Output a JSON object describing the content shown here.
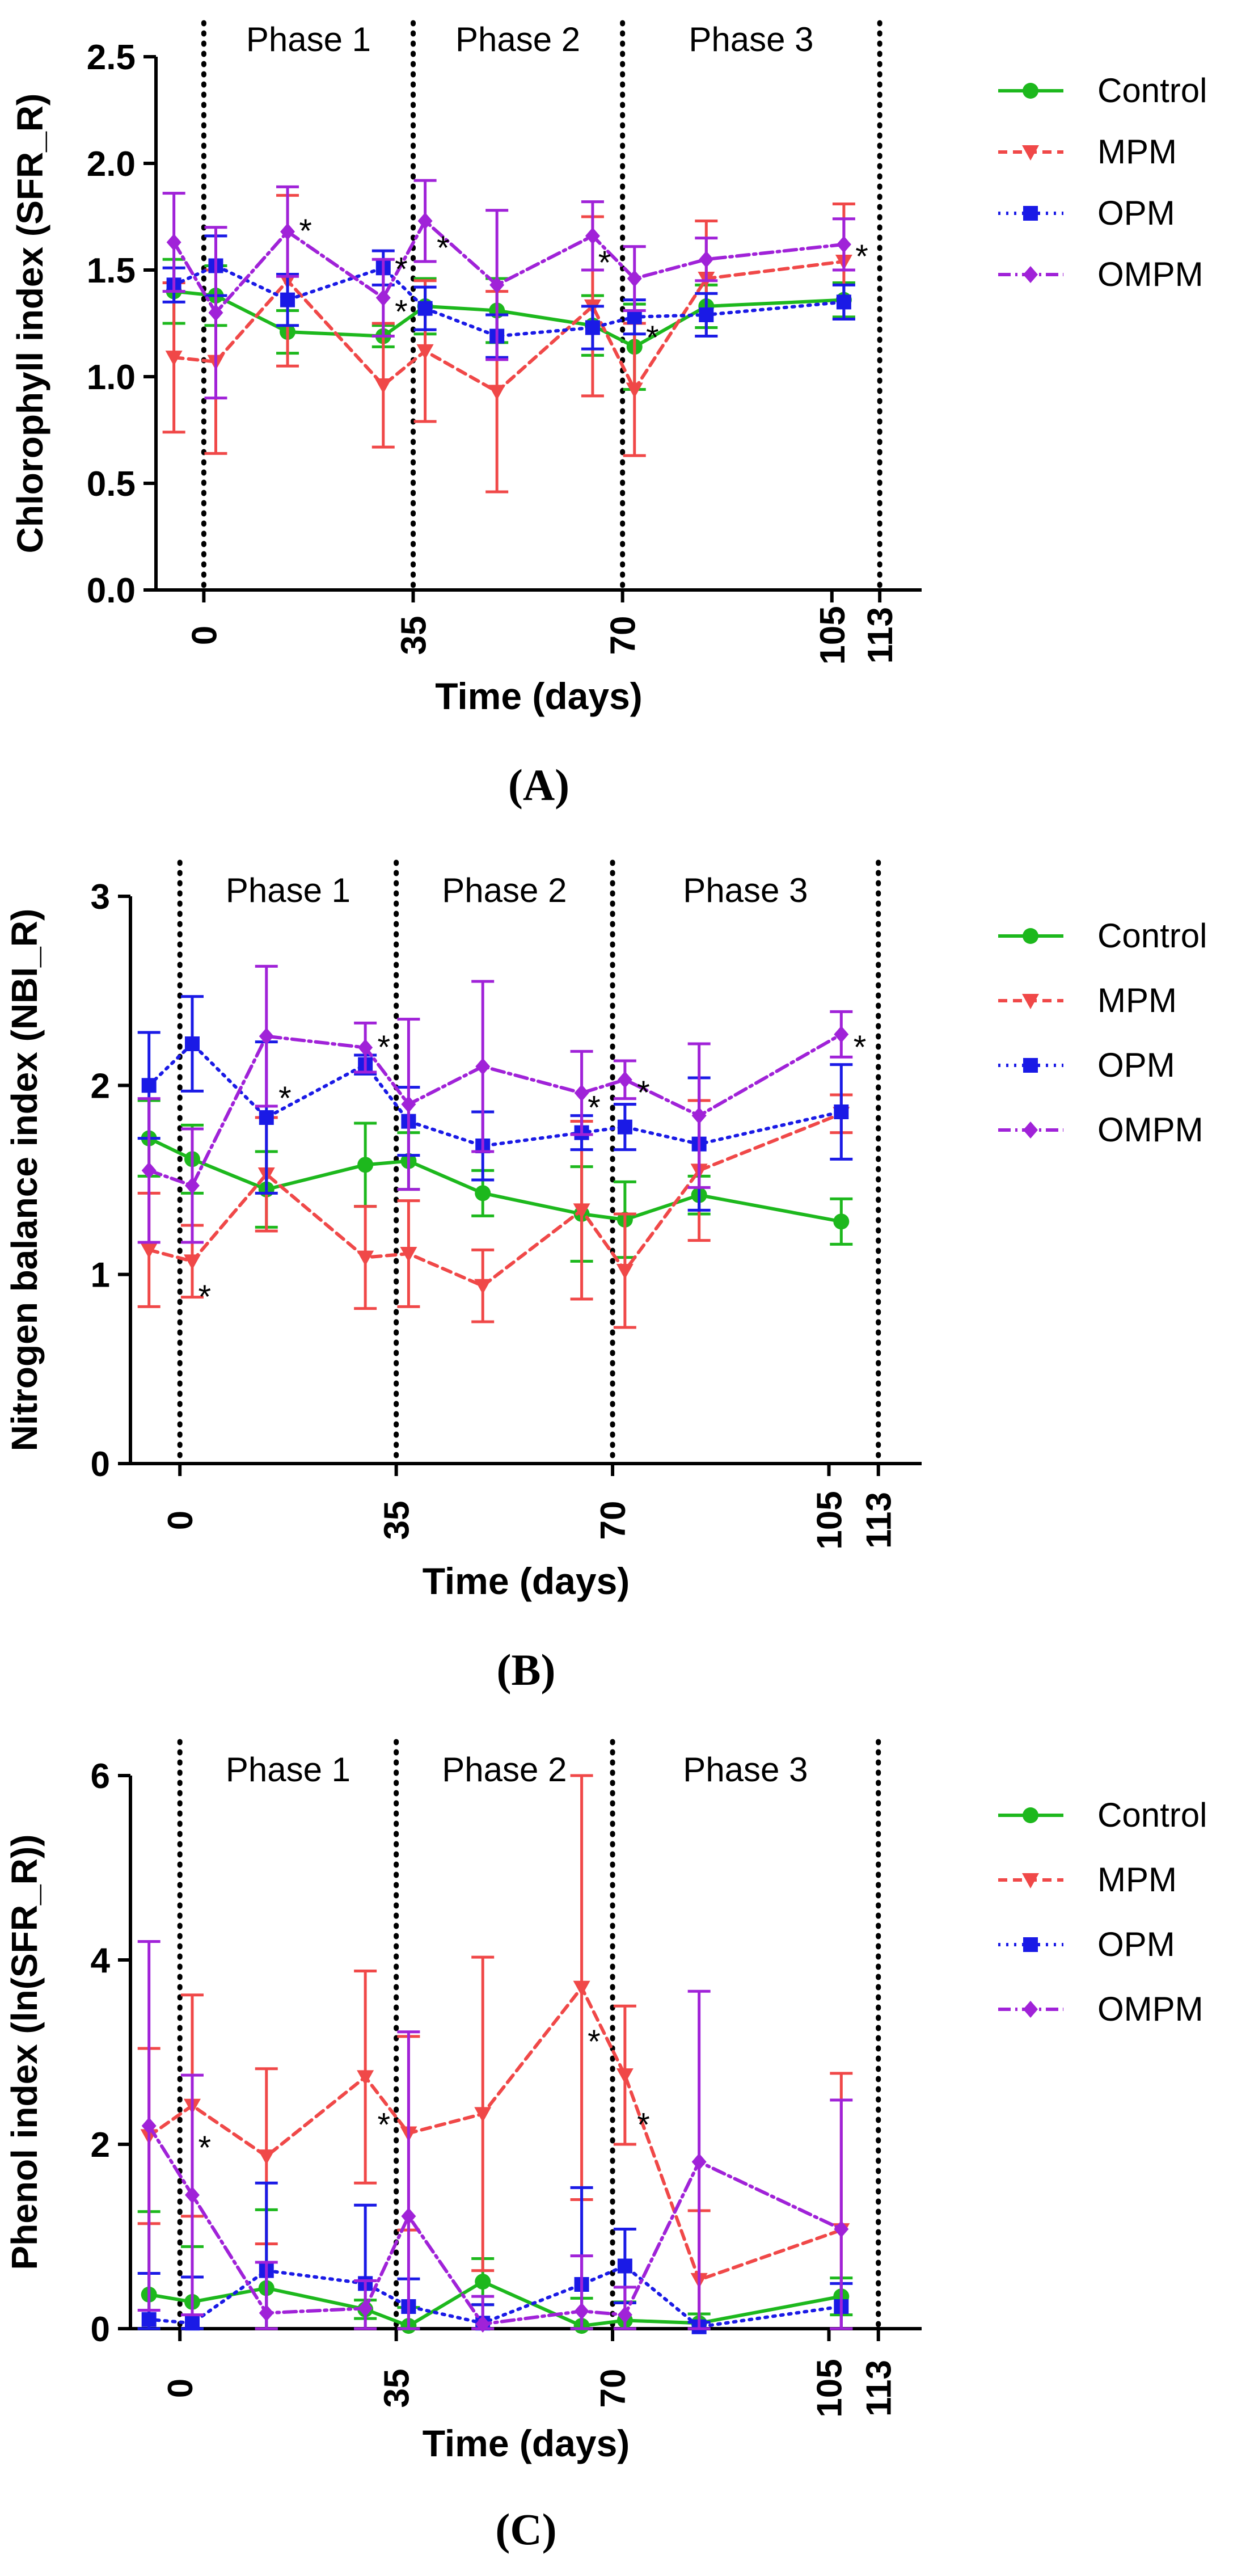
{
  "colors": {
    "Control": "#1db81d",
    "MPM": "#f04848",
    "OPM": "#1a1ae6",
    "OMPM": "#a022d8"
  },
  "chart_data": [
    {
      "type": "line",
      "caption": "(A)",
      "ylabel": "Chlorophyll index (SFR_R)",
      "xlabel": "Time (days)",
      "ylim": [
        0,
        2.5
      ],
      "yticks": [
        "0.0",
        "0.5",
        "1.0",
        "1.5",
        "2.0",
        "2.5"
      ],
      "xlim": [
        -8,
        120
      ],
      "xticks": [
        "0",
        "35",
        "70",
        "105",
        "113"
      ],
      "phase_lines": [
        0,
        35,
        70,
        113
      ],
      "phases": [
        "Phase 1",
        "Phase 2",
        "Phase 3"
      ],
      "legend": [
        "Control",
        "MPM",
        "OPM",
        "OMPM"
      ],
      "x": [
        -5,
        2,
        14,
        30,
        37,
        49,
        65,
        72,
        84,
        107
      ],
      "series": [
        {
          "name": "Control",
          "values": [
            1.4,
            1.38,
            1.21,
            1.19,
            1.33,
            1.31,
            1.24,
            1.14,
            1.33,
            1.36
          ],
          "errors": [
            0.15,
            0.14,
            0.1,
            0.05,
            0.13,
            0.15,
            0.14,
            0.2,
            0.1,
            0.08
          ]
        },
        {
          "name": "MPM",
          "values": [
            1.09,
            1.07,
            1.45,
            0.96,
            1.12,
            0.93,
            1.33,
            0.94,
            1.46,
            1.54
          ],
          "errors": [
            0.35,
            0.43,
            0.4,
            0.29,
            0.33,
            0.47,
            0.42,
            0.31,
            0.27,
            0.27
          ]
        },
        {
          "name": "OPM",
          "values": [
            1.43,
            1.52,
            1.36,
            1.51,
            1.32,
            1.19,
            1.23,
            1.28,
            1.29,
            1.35
          ],
          "errors": [
            0.08,
            0.14,
            0.12,
            0.08,
            0.1,
            0.1,
            0.1,
            0.08,
            0.1,
            0.08
          ]
        },
        {
          "name": "OMPM",
          "values": [
            1.63,
            1.3,
            1.68,
            1.37,
            1.73,
            1.43,
            1.66,
            1.46,
            1.55,
            1.62
          ],
          "errors": [
            0.23,
            0.4,
            0.21,
            0.18,
            0.19,
            0.35,
            0.16,
            0.15,
            0.1,
            0.12
          ]
        }
      ],
      "annotations": [
        {
          "text": "*",
          "x": 17,
          "y": 1.7
        },
        {
          "text": "*",
          "x": 33,
          "y": 1.52
        },
        {
          "text": "*",
          "x": 33,
          "y": 1.32
        },
        {
          "text": "*",
          "x": 40,
          "y": 1.62
        },
        {
          "text": "*",
          "x": 67,
          "y": 1.55
        },
        {
          "text": "*",
          "x": 75,
          "y": 1.2
        },
        {
          "text": "*",
          "x": 110,
          "y": 1.58
        }
      ]
    },
    {
      "type": "line",
      "caption": "(B)",
      "ylabel": "Nitrogen balance index (NBI_R)",
      "xlabel": "Time (days)",
      "ylim": [
        0,
        3
      ],
      "yticks": [
        "0",
        "1",
        "2",
        "3"
      ],
      "xlim": [
        -8,
        120
      ],
      "xticks": [
        "0",
        "35",
        "70",
        "105",
        "113"
      ],
      "phase_lines": [
        0,
        35,
        70,
        113
      ],
      "phases": [
        "Phase 1",
        "Phase 2",
        "Phase 3"
      ],
      "legend": [
        "Control",
        "MPM",
        "OPM",
        "OMPM"
      ],
      "x": [
        -5,
        2,
        14,
        30,
        37,
        49,
        65,
        72,
        84,
        107
      ],
      "series": [
        {
          "name": "Control",
          "values": [
            1.72,
            1.61,
            1.45,
            1.58,
            1.6,
            1.43,
            1.32,
            1.29,
            1.42,
            1.28
          ],
          "errors": [
            0.2,
            0.18,
            0.2,
            0.22,
            0.15,
            0.12,
            0.25,
            0.2,
            0.1,
            0.12
          ]
        },
        {
          "name": "MPM",
          "values": [
            1.13,
            1.07,
            1.53,
            1.09,
            1.11,
            0.94,
            1.34,
            1.02,
            1.55,
            1.85
          ],
          "errors": [
            0.3,
            0.19,
            0.3,
            0.27,
            0.28,
            0.19,
            0.47,
            0.3,
            0.37,
            0.1
          ]
        },
        {
          "name": "OPM",
          "values": [
            2.0,
            2.22,
            1.83,
            2.11,
            1.81,
            1.68,
            1.75,
            1.78,
            1.69,
            1.86
          ],
          "errors": [
            0.28,
            0.25,
            0.4,
            0.05,
            0.18,
            0.18,
            0.09,
            0.12,
            0.35,
            0.25
          ]
        },
        {
          "name": "OMPM",
          "values": [
            1.55,
            1.47,
            2.26,
            2.2,
            1.9,
            2.1,
            1.96,
            2.03,
            1.84,
            2.27
          ],
          "errors": [
            0.38,
            0.3,
            0.37,
            0.13,
            0.45,
            0.45,
            0.22,
            0.1,
            0.38,
            0.12
          ]
        }
      ],
      "annotations": [
        {
          "text": "*",
          "x": 4,
          "y": 0.9
        },
        {
          "text": "*",
          "x": 17,
          "y": 1.95
        },
        {
          "text": "*",
          "x": 33,
          "y": 2.22
        },
        {
          "text": "*",
          "x": 67,
          "y": 1.9
        },
        {
          "text": "*",
          "x": 75,
          "y": 1.98
        },
        {
          "text": "*",
          "x": 110,
          "y": 2.22
        }
      ]
    },
    {
      "type": "line",
      "caption": "(C)",
      "ylabel": "Phenol index (ln(SFR_R))",
      "xlabel": "Time (days)",
      "ylim": [
        0,
        6
      ],
      "yticks": [
        "0",
        "2",
        "4",
        "6"
      ],
      "xlim": [
        -8,
        120
      ],
      "xticks": [
        "0",
        "35",
        "70",
        "105",
        "113"
      ],
      "phase_lines": [
        0,
        35,
        70,
        113
      ],
      "phases": [
        "Phase  1",
        "Phase  2",
        "Phase  3"
      ],
      "legend": [
        "Control",
        "MPM",
        "OPM",
        "OMPM"
      ],
      "x": [
        -5,
        2,
        14,
        30,
        37,
        49,
        65,
        72,
        84,
        107
      ],
      "series": [
        {
          "name": "Control",
          "values": [
            0.37,
            0.29,
            0.44,
            0.21,
            0.03,
            0.51,
            0.03,
            0.09,
            0.06,
            0.35
          ],
          "errors": [
            0.9,
            0.6,
            0.85,
            0.1,
            0.2,
            0.25,
            0.3,
            0.2,
            0.1,
            0.2
          ]
        },
        {
          "name": "MPM",
          "values": [
            2.09,
            2.42,
            1.87,
            2.73,
            2.12,
            2.33,
            3.7,
            2.75,
            0.53,
            1.07
          ],
          "errors": [
            0.95,
            1.2,
            0.95,
            1.15,
            1.05,
            1.7,
            2.3,
            0.75,
            0.75,
            1.7
          ]
        },
        {
          "name": "OPM",
          "values": [
            0.1,
            0.06,
            0.63,
            0.49,
            0.24,
            0.06,
            0.48,
            0.68,
            0.02,
            0.24
          ],
          "errors": [
            0.5,
            0.5,
            0.95,
            0.85,
            0.3,
            0.2,
            1.05,
            0.4,
            0.05,
            0.25
          ]
        },
        {
          "name": "OMPM",
          "values": [
            2.2,
            1.45,
            0.17,
            0.22,
            1.22,
            0.05,
            0.19,
            0.15,
            1.81,
            1.08
          ],
          "errors": [
            2.0,
            1.3,
            0.55,
            0.3,
            2.0,
            0.3,
            0.6,
            0.3,
            1.85,
            1.4
          ]
        }
      ],
      "annotations": [
        {
          "text": "*",
          "x": 4,
          "y": 2.0
        },
        {
          "text": "*",
          "x": 33,
          "y": 2.25
        },
        {
          "text": "*",
          "x": 67,
          "y": 3.15
        },
        {
          "text": "*",
          "x": 75,
          "y": 2.25
        }
      ]
    }
  ]
}
